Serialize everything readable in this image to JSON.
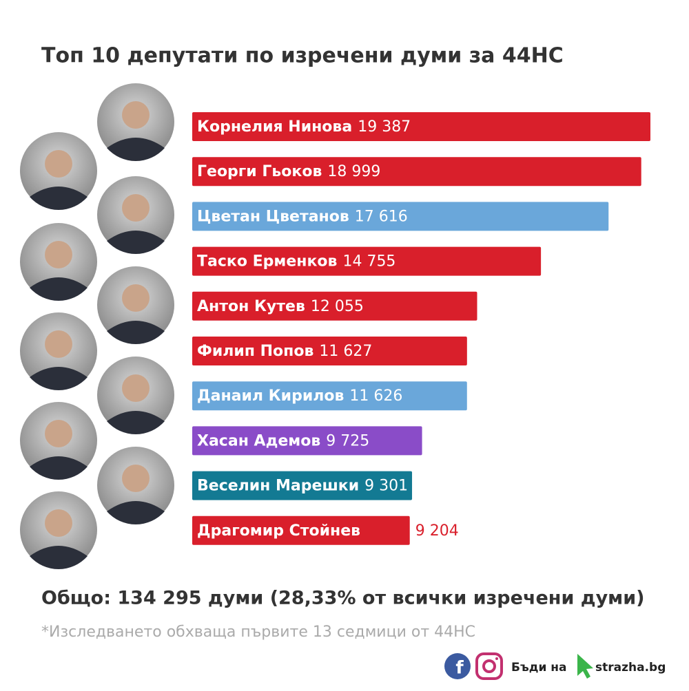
{
  "chart_data": {
    "type": "bar",
    "orientation": "horizontal",
    "title": "Топ 10 депутати по изречени думи за 44НС",
    "categories": [
      "Корнелия Нинова",
      "Георги Гьоков",
      "Цветан Цветанов",
      "Таско Ерменков",
      "Антон Кутев",
      "Филип Попов",
      "Данаил Кирилов",
      "Хасан Адемов",
      "Веселин Марешки",
      "Драгомир Стойнев"
    ],
    "values": [
      19387,
      18999,
      17616,
      14755,
      12055,
      11627,
      11626,
      9725,
      9301,
      9204
    ],
    "value_labels": [
      "19 387",
      "18 999",
      "17 616",
      "14 755",
      "12 055",
      "11 627",
      "11 626",
      "9 725",
      "9 301",
      "9 204"
    ],
    "colors": [
      "#d91f2b",
      "#d91f2b",
      "#6aa7da",
      "#d91f2b",
      "#d91f2b",
      "#d91f2b",
      "#6aa7da",
      "#8a4cc8",
      "#137a93",
      "#d91f2b"
    ],
    "total": "Общо: 134 295 думи (28,33% от всички изречени думи)",
    "note": "*Изследването обхваща първите 13 седмици от 44НС",
    "brand_prefix": "Бъди на",
    "brand_site": "strazha.bg"
  }
}
